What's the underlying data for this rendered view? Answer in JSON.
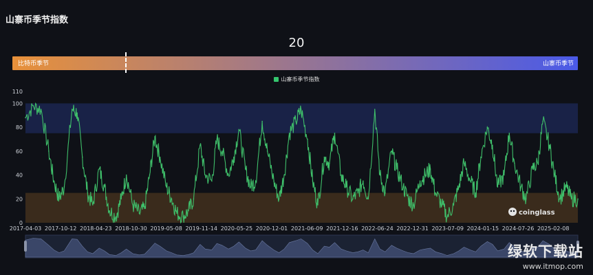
{
  "header": {
    "title": "山寨币季节指数"
  },
  "current_value": "20",
  "season_bar": {
    "left_label": "比特币季节",
    "right_label": "山寨币季节",
    "color_left": "#e8913a",
    "color_right": "#4a5ae8",
    "marker_value": 20
  },
  "colors": {
    "line": "#3fbf6a",
    "legend_swatch": "#35c66e",
    "alt_zone": "#192247",
    "btc_zone": "#3a2b1c",
    "slider_fill": "#3a4668"
  },
  "watermarks": {
    "chart_logo": "coinglass",
    "site_name": "绿软下载站",
    "site_url": "www.itmop.com"
  },
  "chart_data": {
    "type": "line",
    "series": [
      {
        "name": "山寨币季节指数",
        "x": [
          "2017-04-03",
          "2017-05-15",
          "2017-06-26",
          "2017-08-07",
          "2017-09-04",
          "2017-10-02",
          "2017-10-30",
          "2017-12-11",
          "2018-01-08",
          "2018-02-05",
          "2018-03-05",
          "2018-04-02",
          "2018-05-07",
          "2018-06-04",
          "2018-07-02",
          "2018-08-06",
          "2018-09-03",
          "2018-10-01",
          "2018-11-05",
          "2018-12-10",
          "2019-01-07",
          "2019-02-04",
          "2019-03-04",
          "2019-04-01",
          "2019-05-06",
          "2019-06-03",
          "2019-07-01",
          "2019-08-05",
          "2019-09-02",
          "2019-09-30",
          "2019-11-04",
          "2019-12-02",
          "2020-01-06",
          "2020-02-03",
          "2020-03-02",
          "2020-04-06",
          "2020-05-04",
          "2020-06-01",
          "2020-07-06",
          "2020-08-03",
          "2020-08-31",
          "2020-10-05",
          "2020-11-02",
          "2020-12-07",
          "2021-01-04",
          "2021-02-01",
          "2021-03-01",
          "2021-04-05",
          "2021-05-03",
          "2021-06-07",
          "2021-07-05",
          "2021-08-02",
          "2021-09-06",
          "2021-10-04",
          "2021-11-01",
          "2021-12-06",
          "2022-01-03",
          "2022-02-07",
          "2022-03-07",
          "2022-04-04",
          "2022-05-02",
          "2022-06-06",
          "2022-07-04",
          "2022-08-01",
          "2022-09-05",
          "2022-10-03",
          "2022-11-07",
          "2022-12-05",
          "2023-01-02",
          "2023-02-06",
          "2023-03-06",
          "2023-04-03",
          "2023-05-01",
          "2023-06-05",
          "2023-07-03",
          "2023-08-07",
          "2023-09-04",
          "2023-10-02",
          "2023-11-06",
          "2023-12-04",
          "2024-01-01",
          "2024-02-05",
          "2024-03-04",
          "2024-04-01",
          "2024-05-06",
          "2024-06-03",
          "2024-07-01",
          "2024-08-05",
          "2024-09-02",
          "2024-10-07",
          "2024-11-04",
          "2024-12-02",
          "2025-01-06",
          "2025-02-03",
          "2025-03-03",
          "2025-04-07",
          "2025-05-05",
          "2025-06-09"
        ],
        "values": [
          88,
          98,
          95,
          60,
          35,
          20,
          30,
          95,
          92,
          55,
          25,
          15,
          45,
          30,
          10,
          5,
          20,
          40,
          15,
          8,
          12,
          40,
          72,
          55,
          30,
          20,
          8,
          5,
          10,
          20,
          65,
          40,
          35,
          70,
          60,
          40,
          55,
          78,
          45,
          30,
          35,
          85,
          60,
          35,
          20,
          40,
          75,
          85,
          95,
          70,
          35,
          15,
          55,
          50,
          75,
          40,
          30,
          20,
          25,
          35,
          20,
          95,
          40,
          25,
          60,
          45,
          30,
          20,
          15,
          35,
          40,
          45,
          25,
          15,
          5,
          15,
          30,
          50,
          35,
          25,
          55,
          80,
          65,
          30,
          40,
          75,
          50,
          30,
          20,
          45,
          50,
          85,
          65,
          40,
          20,
          30,
          20,
          20
        ]
      }
    ],
    "x_tick_labels": [
      "2017-04-03",
      "2017-10-12",
      "2018-04-23",
      "2018-10-30",
      "2019-05-08",
      "2019-11-14",
      "2020-05-25",
      "2020-12-01",
      "2021-06-09",
      "2021-12-16",
      "2022-06-24",
      "2022-12-31",
      "2023-07-09",
      "2024-01-15",
      "2024-07-26",
      "2025-02-08"
    ],
    "y_ticks": [
      0,
      20,
      40,
      60,
      80,
      100,
      110
    ],
    "ylim": [
      0,
      110
    ],
    "bands": [
      {
        "from": 75,
        "to": 100
      },
      {
        "from": 0,
        "to": 25
      }
    ],
    "legend": {
      "position": "top-center"
    },
    "title": "",
    "xlabel": "",
    "ylabel": "",
    "grid": false,
    "data_zoom_slider": true
  }
}
